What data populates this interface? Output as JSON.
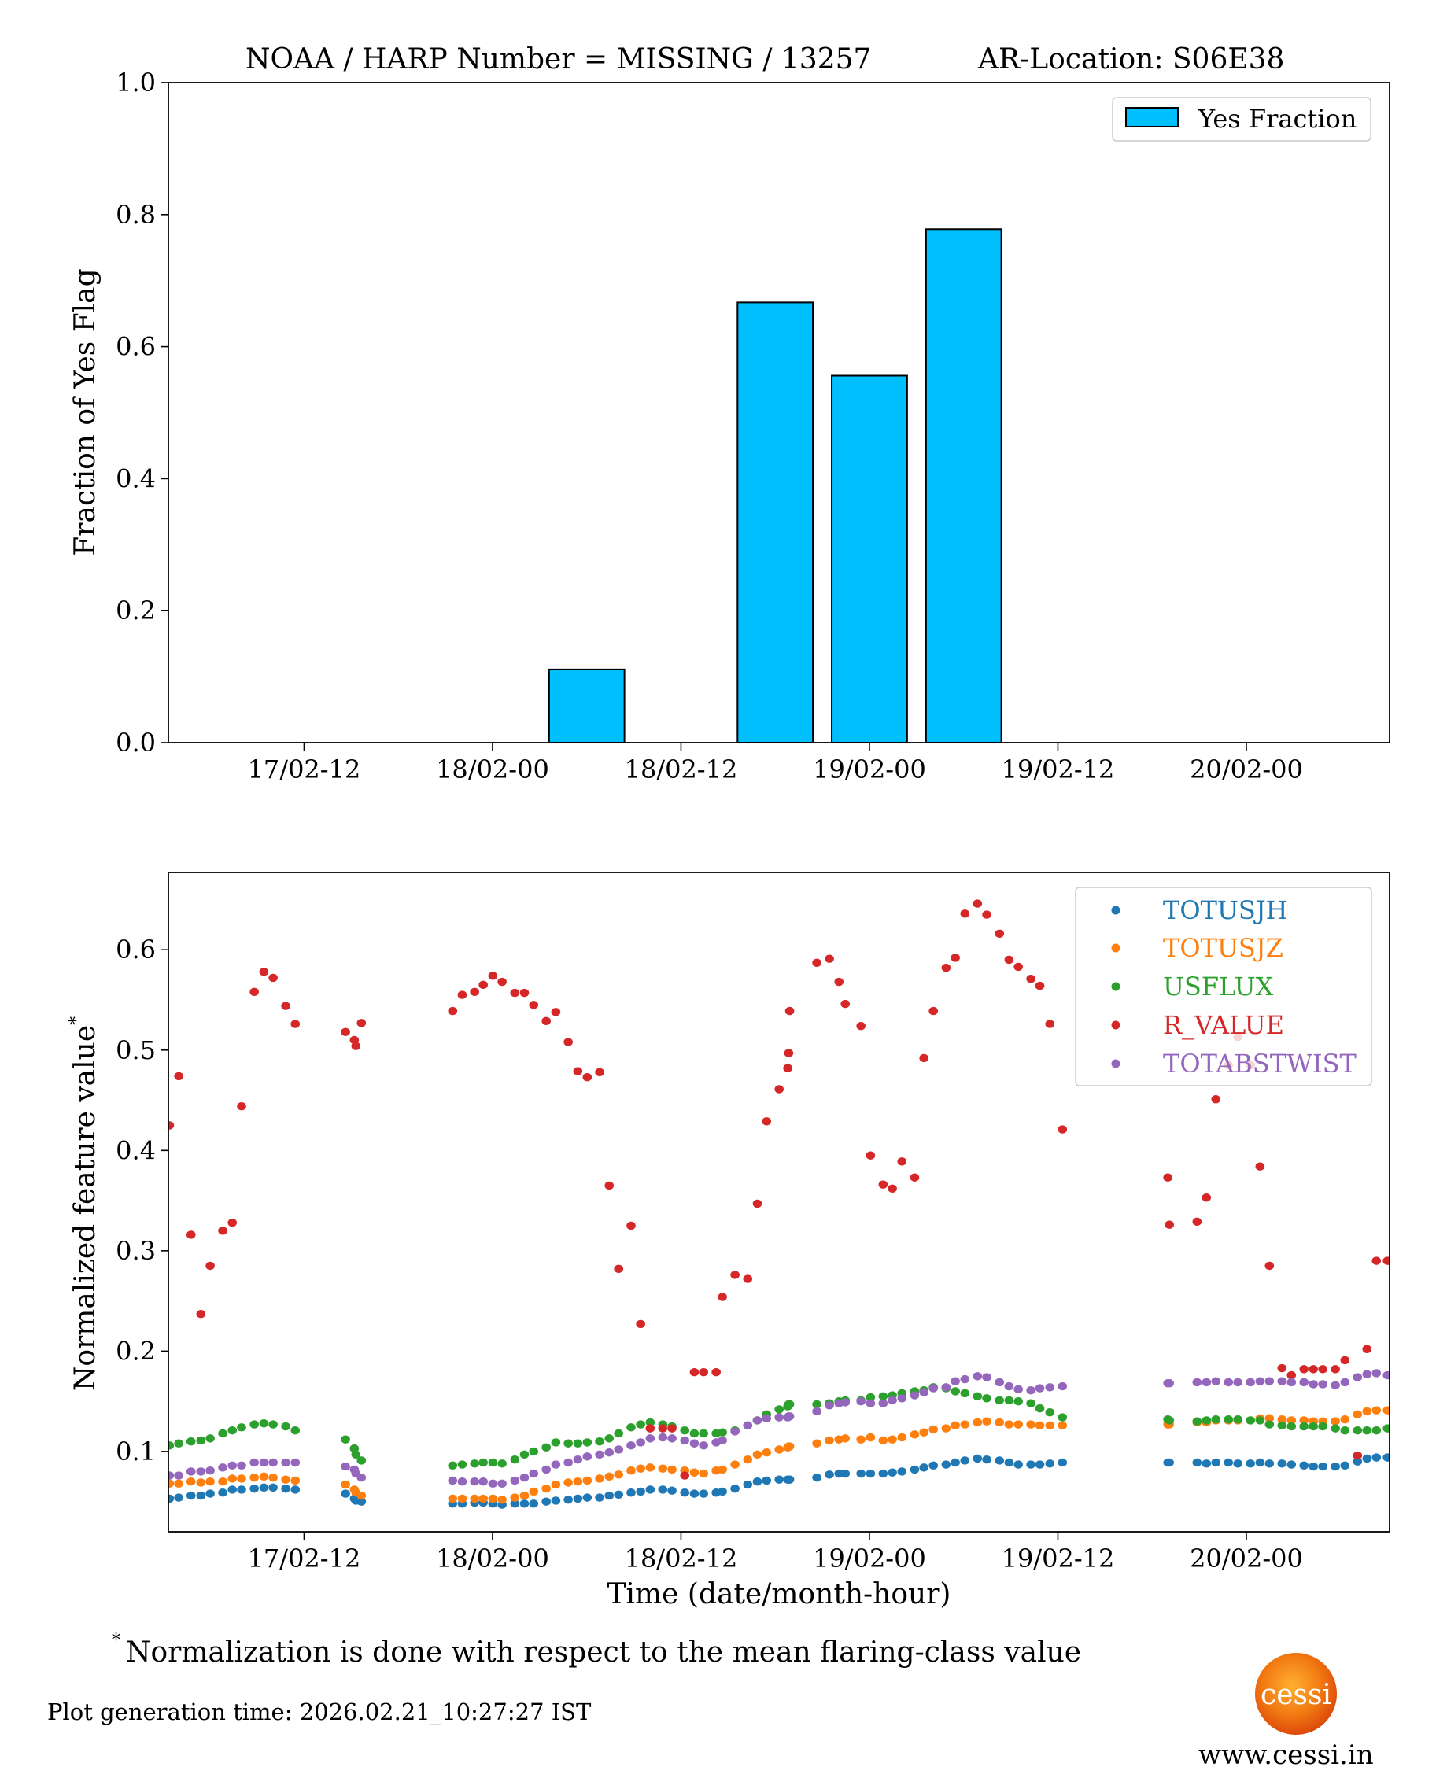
{
  "title": {
    "left": "NOAA / HARP Number = MISSING / 13257",
    "right": "AR-Location: S06E38"
  },
  "footnote": {
    "marker": "*",
    "text": "Normalization is done with respect to the mean flaring-class value"
  },
  "generation_time": "Plot generation time: 2026.02.21_10:27:27 IST",
  "logo": {
    "text": "cessi",
    "url": "www.cessi.in"
  },
  "chart_data": [
    {
      "type": "bar",
      "title": "NOAA / HARP Number = MISSING / 13257      AR-Location: S06E38",
      "x_unit": "hours since 17/02 00:00",
      "xlim": [
        3.36,
        81.12
      ],
      "x_ticks": [
        12,
        24,
        36,
        48,
        60,
        72
      ],
      "x_tick_labels": [
        "17/02-12",
        "18/02-00",
        "18/02-12",
        "19/02-00",
        "19/02-12",
        "20/02-00"
      ],
      "ylabel": "Fraction of Yes Flag",
      "ylim": [
        0,
        1
      ],
      "y_ticks": [
        0,
        0.2,
        0.4,
        0.6,
        0.8,
        1.0
      ],
      "y_tick_labels": [
        "0.0",
        "0.2",
        "0.4",
        "0.6",
        "0.8",
        "1.0"
      ],
      "bar_width_hours": 4.8,
      "x": [
        30,
        42,
        48,
        54
      ],
      "values": [
        0.111,
        0.667,
        0.556,
        0.778
      ],
      "legend": {
        "label": "Yes Fraction",
        "placement": "top-right"
      },
      "color": "#00BFFF",
      "edge_color": "#000000"
    },
    {
      "type": "scatter",
      "x_unit": "hours since 17/02 00:00",
      "xlim": [
        3.36,
        81.12
      ],
      "x_ticks": [
        12,
        24,
        36,
        48,
        60,
        72
      ],
      "x_tick_labels": [
        "17/02-12",
        "18/02-00",
        "18/02-12",
        "19/02-00",
        "19/02-12",
        "20/02-00"
      ],
      "xlabel": "Time (date/month-hour)",
      "ylabel": "Normalized feature value",
      "ylabel_marker": "*",
      "ylim": [
        0.02,
        0.677
      ],
      "y_ticks": [
        0.1,
        0.2,
        0.3,
        0.4,
        0.5,
        0.6
      ],
      "y_tick_labels": [
        "0.1",
        "0.2",
        "0.3",
        "0.4",
        "0.5",
        "0.6"
      ],
      "legend_placement": "top-right",
      "x": [
        3.43,
        4.02,
        4.8,
        5.43,
        6.02,
        6.82,
        7.43,
        8.02,
        8.83,
        9.44,
        10.03,
        10.83,
        11.44,
        14.64,
        15.2,
        15.3,
        15.65,
        21.46,
        22.07,
        22.86,
        23.41,
        24.02,
        24.61,
        25.42,
        26.03,
        26.62,
        27.42,
        28.03,
        28.82,
        29.43,
        30.03,
        30.82,
        31.43,
        32.03,
        32.82,
        33.43,
        34.04,
        34.84,
        35.43,
        36.24,
        36.85,
        37.44,
        38.24,
        38.64,
        39.44,
        40.25,
        40.86,
        41.45,
        42.25,
        42.8,
        42.86,
        42.92,
        44.65,
        45.45,
        46.06,
        46.46,
        47.46,
        48.07,
        48.87,
        49.46,
        50.07,
        50.88,
        51.47,
        52.07,
        52.88,
        53.47,
        54.08,
        54.88,
        55.47,
        56.28,
        56.89,
        57.48,
        58.28,
        58.85,
        59.49,
        60.29,
        67.0,
        67.1,
        68.86,
        69.46,
        70.06,
        70.86,
        71.46,
        72.26,
        72.87,
        73.47,
        74.27,
        74.87,
        75.67,
        76.27,
        76.87,
        77.67,
        78.28,
        79.08,
        79.68,
        80.28,
        80.98
      ],
      "series": [
        {
          "name": "TOTUSJH",
          "color": "#1f77b4",
          "values": [
            0.053,
            0.054,
            0.056,
            0.056,
            0.058,
            0.059,
            0.062,
            0.062,
            0.063,
            0.064,
            0.064,
            0.063,
            0.062,
            0.058,
            0.053,
            0.051,
            0.05,
            0.048,
            0.048,
            0.049,
            0.049,
            0.048,
            0.047,
            0.048,
            0.048,
            0.048,
            0.05,
            0.051,
            0.052,
            0.053,
            0.054,
            0.054,
            0.056,
            0.057,
            0.059,
            0.06,
            0.062,
            0.062,
            0.061,
            0.059,
            0.058,
            0.058,
            0.059,
            0.06,
            0.063,
            0.067,
            0.07,
            0.071,
            0.072,
            0.072,
            0.072,
            0.072,
            0.074,
            0.077,
            0.078,
            0.078,
            0.078,
            0.078,
            0.078,
            0.079,
            0.08,
            0.082,
            0.084,
            0.086,
            0.087,
            0.089,
            0.091,
            0.093,
            0.092,
            0.091,
            0.089,
            0.087,
            0.087,
            0.087,
            0.088,
            0.089,
            0.089,
            0.089,
            0.089,
            0.088,
            0.089,
            0.089,
            0.088,
            0.088,
            0.089,
            0.088,
            0.088,
            0.087,
            0.086,
            0.085,
            0.085,
            0.085,
            0.086,
            0.09,
            0.093,
            0.094,
            0.094
          ]
        },
        {
          "name": "TOTUSJZ",
          "color": "#ff7f0e",
          "values": [
            0.068,
            0.068,
            0.07,
            0.069,
            0.07,
            0.07,
            0.073,
            0.073,
            0.074,
            0.075,
            0.074,
            0.072,
            0.071,
            0.067,
            0.062,
            0.059,
            0.056,
            0.053,
            0.053,
            0.053,
            0.053,
            0.053,
            0.052,
            0.054,
            0.056,
            0.06,
            0.063,
            0.067,
            0.069,
            0.07,
            0.071,
            0.073,
            0.075,
            0.077,
            0.081,
            0.083,
            0.084,
            0.083,
            0.082,
            0.081,
            0.079,
            0.078,
            0.081,
            0.082,
            0.087,
            0.092,
            0.097,
            0.099,
            0.102,
            0.104,
            0.105,
            0.105,
            0.108,
            0.111,
            0.112,
            0.113,
            0.112,
            0.114,
            0.111,
            0.112,
            0.114,
            0.117,
            0.119,
            0.122,
            0.123,
            0.126,
            0.127,
            0.129,
            0.13,
            0.129,
            0.127,
            0.127,
            0.127,
            0.126,
            0.126,
            0.126,
            0.127,
            0.127,
            0.129,
            0.129,
            0.131,
            0.131,
            0.131,
            0.131,
            0.133,
            0.133,
            0.132,
            0.131,
            0.131,
            0.13,
            0.13,
            0.13,
            0.132,
            0.137,
            0.14,
            0.141,
            0.141
          ]
        },
        {
          "name": "USFLUX",
          "color": "#2ca02c",
          "values": [
            0.106,
            0.108,
            0.11,
            0.111,
            0.113,
            0.118,
            0.121,
            0.124,
            0.127,
            0.128,
            0.127,
            0.125,
            0.121,
            0.112,
            0.103,
            0.097,
            0.091,
            0.086,
            0.087,
            0.088,
            0.089,
            0.089,
            0.088,
            0.092,
            0.097,
            0.1,
            0.104,
            0.109,
            0.108,
            0.108,
            0.109,
            0.11,
            0.113,
            0.118,
            0.124,
            0.127,
            0.129,
            0.127,
            0.125,
            0.121,
            0.118,
            0.118,
            0.118,
            0.119,
            0.121,
            0.126,
            0.131,
            0.137,
            0.142,
            0.145,
            0.147,
            0.147,
            0.147,
            0.148,
            0.15,
            0.151,
            0.151,
            0.154,
            0.155,
            0.156,
            0.158,
            0.16,
            0.161,
            0.164,
            0.163,
            0.16,
            0.158,
            0.155,
            0.153,
            0.151,
            0.151,
            0.15,
            0.148,
            0.143,
            0.139,
            0.134,
            0.132,
            0.131,
            0.13,
            0.131,
            0.132,
            0.132,
            0.132,
            0.131,
            0.131,
            0.127,
            0.126,
            0.125,
            0.125,
            0.125,
            0.125,
            0.123,
            0.121,
            0.121,
            0.121,
            0.121,
            0.123
          ]
        },
        {
          "name": "R_VALUE",
          "color": "#d62728",
          "values": [
            0.425,
            0.474,
            0.316,
            0.237,
            0.285,
            0.32,
            0.328,
            0.444,
            0.558,
            0.578,
            0.572,
            0.544,
            0.526,
            0.518,
            0.51,
            0.504,
            0.527,
            0.539,
            0.555,
            0.558,
            0.565,
            0.574,
            0.568,
            0.557,
            0.557,
            0.545,
            0.529,
            0.538,
            0.508,
            0.479,
            0.473,
            0.478,
            0.365,
            0.282,
            0.325,
            0.227,
            0.123,
            0.123,
            0.123,
            0.076,
            0.179,
            0.179,
            0.179,
            0.254,
            0.276,
            0.272,
            0.347,
            0.429,
            0.461,
            0.482,
            0.497,
            0.539,
            0.587,
            0.591,
            0.568,
            0.546,
            0.524,
            0.395,
            0.366,
            0.362,
            0.389,
            0.373,
            0.492,
            0.539,
            0.582,
            0.592,
            0.636,
            0.646,
            0.635,
            0.616,
            0.59,
            0.583,
            0.571,
            0.564,
            0.526,
            0.421,
            0.373,
            0.326,
            0.329,
            0.353,
            0.451,
            0.485,
            0.513,
            0.485,
            0.384,
            0.285,
            0.183,
            0.176,
            0.182,
            0.182,
            0.182,
            0.182,
            0.191,
            0.096,
            0.202,
            0.29,
            0.29
          ]
        },
        {
          "name": "TOTABSTWIST",
          "color": "#9467bd",
          "values": [
            0.076,
            0.076,
            0.08,
            0.08,
            0.081,
            0.084,
            0.086,
            0.086,
            0.089,
            0.089,
            0.089,
            0.089,
            0.089,
            0.085,
            0.082,
            0.078,
            0.074,
            0.071,
            0.07,
            0.07,
            0.07,
            0.068,
            0.068,
            0.071,
            0.074,
            0.078,
            0.082,
            0.087,
            0.089,
            0.092,
            0.095,
            0.097,
            0.099,
            0.102,
            0.106,
            0.109,
            0.113,
            0.114,
            0.113,
            0.111,
            0.108,
            0.106,
            0.109,
            0.111,
            0.12,
            0.126,
            0.131,
            0.133,
            0.134,
            0.134,
            0.135,
            0.135,
            0.14,
            0.146,
            0.148,
            0.149,
            0.15,
            0.148,
            0.148,
            0.151,
            0.153,
            0.156,
            0.159,
            0.163,
            0.164,
            0.17,
            0.172,
            0.175,
            0.174,
            0.169,
            0.165,
            0.162,
            0.161,
            0.163,
            0.164,
            0.165,
            0.168,
            0.168,
            0.169,
            0.169,
            0.17,
            0.169,
            0.169,
            0.169,
            0.17,
            0.17,
            0.17,
            0.169,
            0.169,
            0.167,
            0.167,
            0.166,
            0.169,
            0.174,
            0.177,
            0.178,
            0.176
          ]
        }
      ]
    }
  ]
}
